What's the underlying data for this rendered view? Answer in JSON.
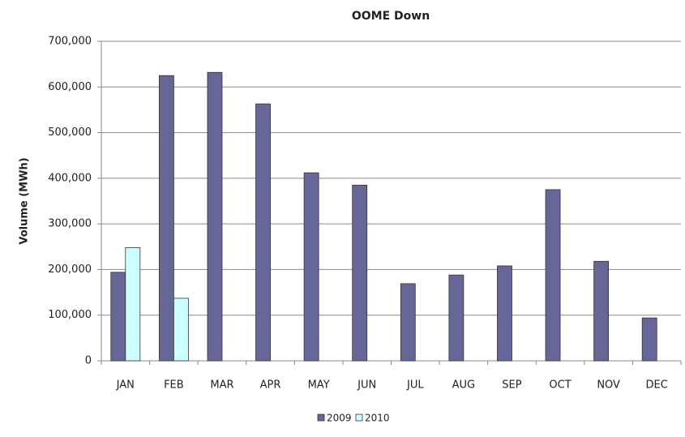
{
  "chart_data": {
    "type": "bar",
    "title": "OOME Down",
    "y_label": "Volume (MWh)",
    "categories": [
      "JAN",
      "FEB",
      "MAR",
      "APR",
      "MAY",
      "JUN",
      "JUL",
      "AUG",
      "SEP",
      "OCT",
      "NOV",
      "DEC"
    ],
    "series": [
      {
        "name": "2009",
        "color": "#666699",
        "values": [
          194000,
          625000,
          632000,
          563000,
          412000,
          385000,
          169000,
          188000,
          208000,
          375000,
          218000,
          94000
        ]
      },
      {
        "name": "2010",
        "color": "#ccffff",
        "values": [
          248000,
          137000,
          null,
          null,
          null,
          null,
          null,
          null,
          null,
          null,
          null,
          null
        ]
      }
    ],
    "ylim": [
      0,
      700000
    ],
    "yticks": [
      0,
      {
        "value": 100000,
        "label": "100,000"
      },
      {
        "value": 200000,
        "label": "200,000"
      },
      {
        "value": 300000,
        "label": "300,000"
      },
      {
        "value": 400000,
        "label": "400,000"
      },
      {
        "value": 500000,
        "label": "500,000"
      },
      {
        "value": 600000,
        "label": "600,000"
      },
      {
        "value": 700000,
        "label": "700,000"
      }
    ],
    "grid": true,
    "legend": "bottom"
  }
}
